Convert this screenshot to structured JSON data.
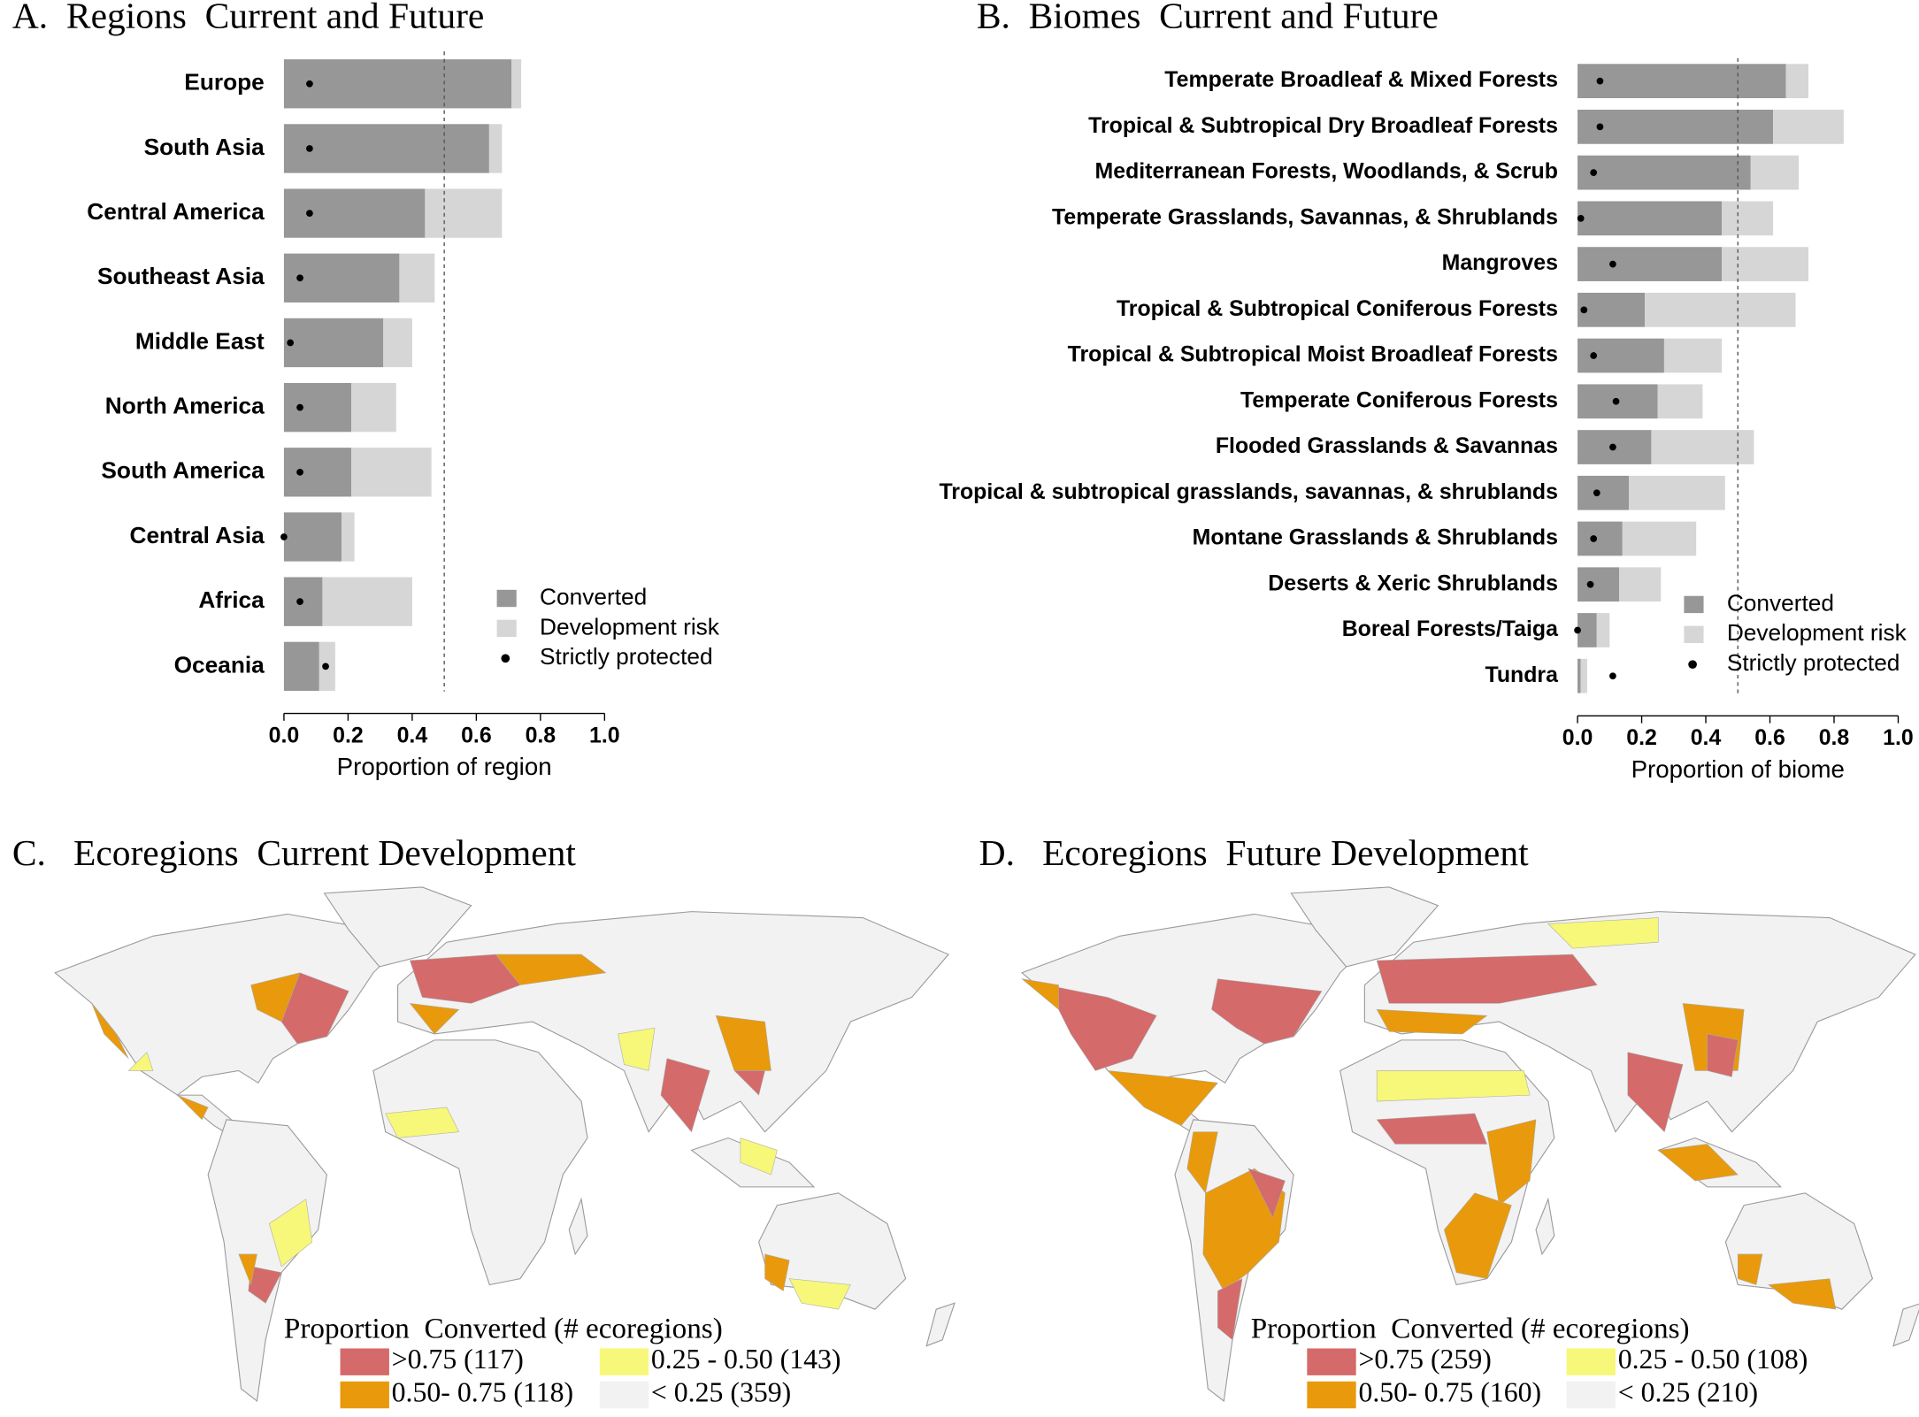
{
  "chart_data": [
    {
      "type": "bar",
      "orientation": "horizontal",
      "stacked": true,
      "title": "A.  Regions  Current and Future",
      "categories": [
        "Europe",
        "South Asia",
        "Central America",
        "Southeast Asia",
        "Middle East",
        "North America",
        "South America",
        "Central Asia",
        "Africa",
        "Oceania"
      ],
      "series": [
        {
          "name": "Converted",
          "color": "#979797",
          "values": [
            0.71,
            0.64,
            0.44,
            0.36,
            0.31,
            0.21,
            0.21,
            0.18,
            0.12,
            0.11
          ]
        },
        {
          "name": "Development risk",
          "color": "#d6d6d6",
          "values": [
            0.03,
            0.04,
            0.24,
            0.11,
            0.09,
            0.14,
            0.25,
            0.04,
            0.28,
            0.05
          ]
        },
        {
          "name": "Strictly protected",
          "color": "#000000",
          "marker": "dot",
          "values": [
            0.08,
            0.08,
            0.08,
            0.05,
            0.02,
            0.05,
            0.05,
            0.0,
            0.05,
            0.13
          ]
        }
      ],
      "xlim": [
        0,
        1
      ],
      "xticks": [
        {
          "value": 0,
          "label": "0.0"
        },
        {
          "value": 0.2,
          "label": "0.2"
        },
        {
          "value": 0.4,
          "label": "0.4"
        },
        {
          "value": 0.6,
          "label": "0.6"
        },
        {
          "value": 0.8,
          "label": "0.8"
        },
        {
          "value": 1,
          "label": "1.0"
        }
      ],
      "xlabel": "Proportion of region",
      "reference_line": 0.5
    },
    {
      "type": "bar",
      "orientation": "horizontal",
      "stacked": true,
      "title": "B.  Biomes  Current and Future",
      "categories": [
        "Temperate Broadleaf & Mixed Forests",
        "Tropical & Subtropical Dry Broadleaf Forests",
        "Mediterranean Forests, Woodlands, & Scrub",
        "Temperate Grasslands, Savannas, & Shrublands",
        "Mangroves",
        "Tropical & Subtropical Coniferous Forests",
        "Tropical & Subtropical Moist Broadleaf Forests",
        "Temperate Coniferous Forests",
        "Flooded Grasslands & Savannas",
        "Tropical & subtropical grasslands, savannas, & shrublands",
        "Montane Grasslands & Shrublands",
        "Deserts & Xeric Shrublands",
        "Boreal Forests/Taiga",
        "Tundra"
      ],
      "series": [
        {
          "name": "Converted",
          "color": "#979797",
          "values": [
            0.65,
            0.61,
            0.54,
            0.45,
            0.45,
            0.21,
            0.27,
            0.25,
            0.23,
            0.16,
            0.14,
            0.13,
            0.06,
            0.01
          ]
        },
        {
          "name": "Development risk",
          "color": "#d6d6d6",
          "values": [
            0.07,
            0.22,
            0.15,
            0.16,
            0.27,
            0.47,
            0.18,
            0.14,
            0.32,
            0.3,
            0.23,
            0.13,
            0.04,
            0.02
          ]
        },
        {
          "name": "Strictly protected",
          "color": "#000000",
          "marker": "dot",
          "values": [
            0.07,
            0.07,
            0.05,
            0.01,
            0.11,
            0.02,
            0.05,
            0.12,
            0.11,
            0.06,
            0.05,
            0.04,
            0.0,
            0.11
          ]
        }
      ],
      "xlim": [
        0,
        1
      ],
      "xticks": [
        {
          "value": 0,
          "label": "0.0"
        },
        {
          "value": 0.2,
          "label": "0.2"
        },
        {
          "value": 0.4,
          "label": "0.4"
        },
        {
          "value": 0.6,
          "label": "0.6"
        },
        {
          "value": 0.8,
          "label": "0.8"
        },
        {
          "value": 1,
          "label": "1.0"
        }
      ],
      "xlabel": "Proportion of biome",
      "reference_line": 0.5
    },
    {
      "type": "map",
      "title": "C.   Ecoregions  Current Development",
      "legend_title": "Proportion  Converted (# ecoregions)",
      "legend": [
        {
          "label": ">0.75 (117)",
          "color": "#d46a6a"
        },
        {
          "label": "0.50- 0.75 (118)",
          "color": "#e89a0c"
        },
        {
          "label": "0.25 - 0.50 (143)",
          "color": "#f7f77a"
        },
        {
          "label": "< 0.25 (359)",
          "color": "#f2f2f2"
        }
      ]
    },
    {
      "type": "map",
      "title": "D.   Ecoregions  Future Development",
      "legend_title": "Proportion  Converted (# ecoregions)",
      "legend": [
        {
          "label": ">0.75 (259)",
          "color": "#d46a6a"
        },
        {
          "label": "0.50- 0.75 (160)",
          "color": "#e89a0c"
        },
        {
          "label": "0.25 - 0.50 (108)",
          "color": "#f7f77a"
        },
        {
          "label": "< 0.25 (210)",
          "color": "#f2f2f2"
        }
      ]
    }
  ]
}
